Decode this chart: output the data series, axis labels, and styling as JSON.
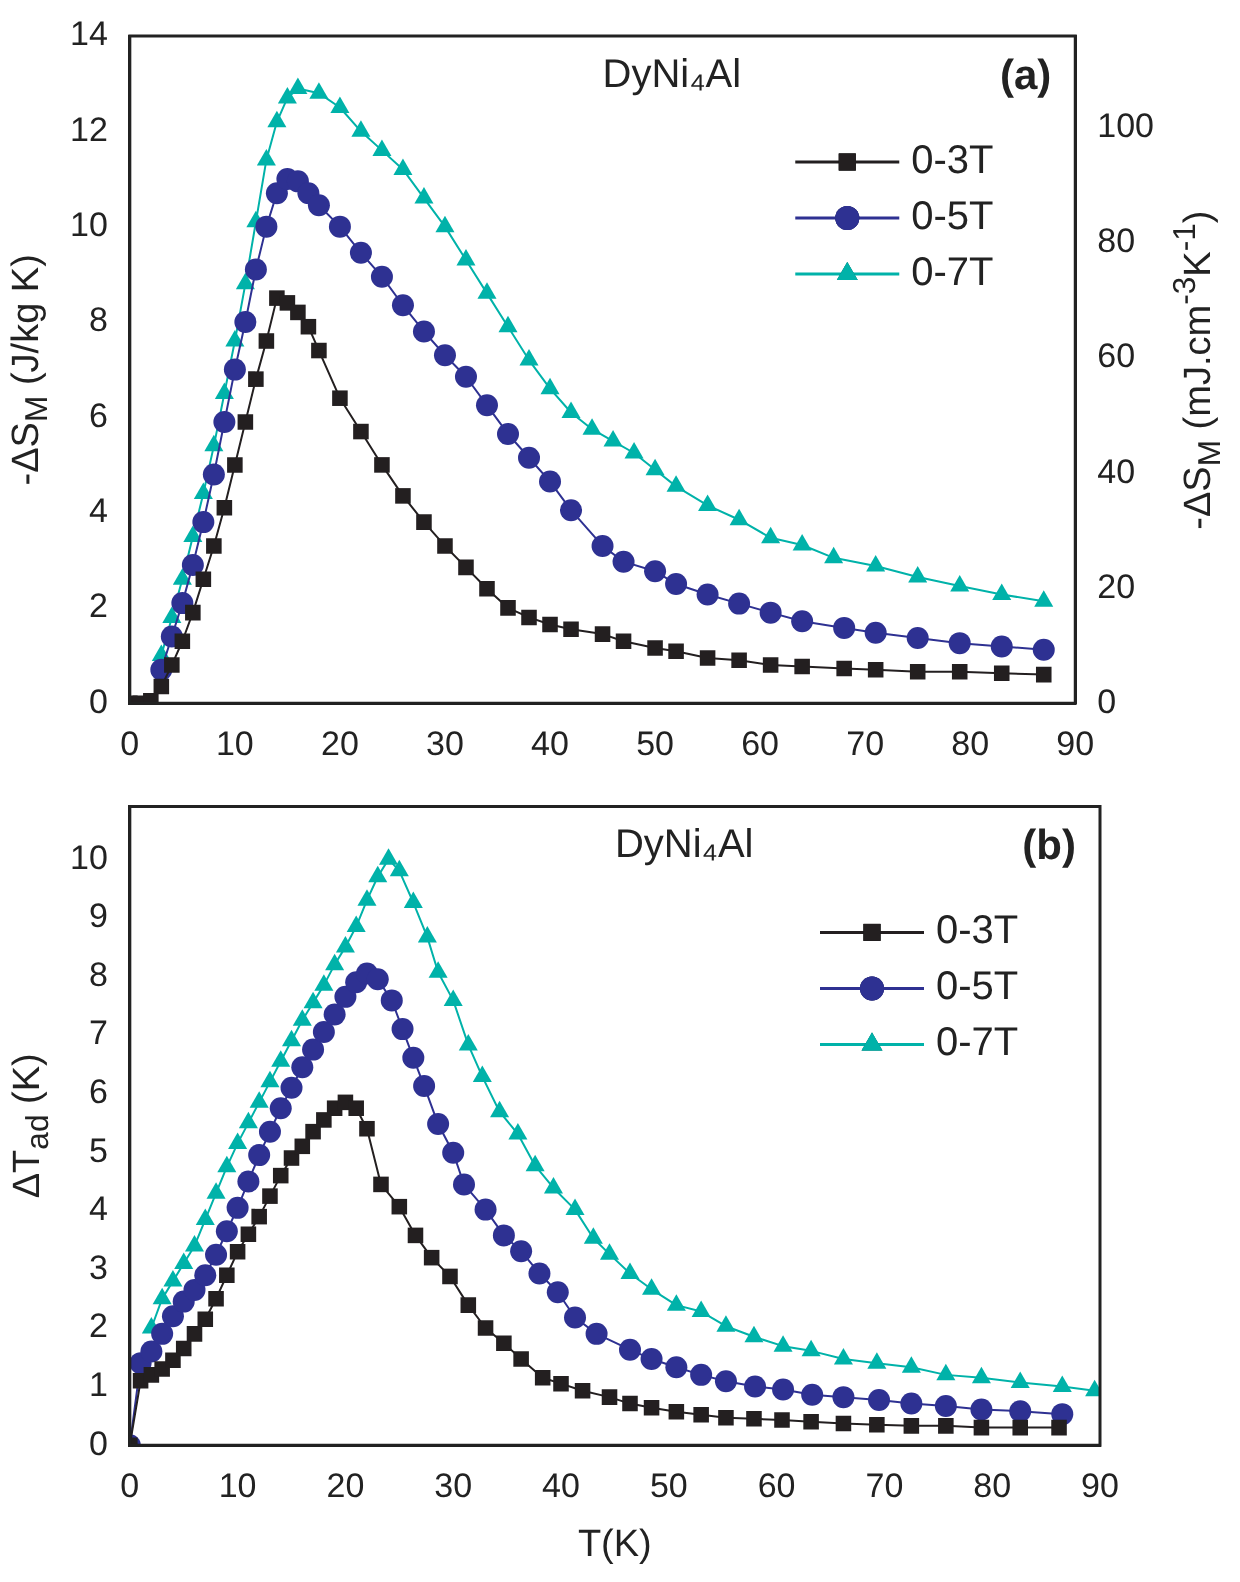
{
  "chart_data": [
    {
      "type": "line",
      "annotations": [
        "DyNi₄Al",
        "(a)"
      ],
      "ylabel": "-ΔS$_{M}$ (J/kg K)",
      "y2label": "-ΔS$_{M}$  (mJ.cm$^{-3}$K$^{-1}$)",
      "xlim": [
        0,
        90
      ],
      "xticks": [
        0,
        10,
        20,
        30,
        40,
        50,
        60,
        70,
        80,
        90
      ],
      "ylim": [
        0,
        14
      ],
      "yticks": [
        0,
        2,
        4,
        6,
        8,
        10,
        12,
        14
      ],
      "y2lim": [
        0,
        116
      ],
      "y2ticks": [
        0,
        20,
        40,
        60,
        80,
        100
      ],
      "grid": false,
      "legend": "top right",
      "line_style": "solid",
      "series": [
        {
          "name": "0-3T",
          "color": "#231f20",
          "marker": "square",
          "x": [
            0,
            1,
            2,
            3,
            4,
            5,
            6,
            7,
            8,
            9,
            10,
            11,
            12,
            13,
            14,
            15,
            16,
            17,
            18,
            20,
            22,
            24,
            26,
            28,
            30,
            32,
            34,
            36,
            38,
            40,
            42,
            45,
            47,
            50,
            52,
            55,
            58,
            61,
            64,
            68,
            71,
            75,
            79,
            83,
            87
          ],
          "values": [
            0,
            0,
            0.05,
            0.35,
            0.8,
            1.3,
            1.9,
            2.6,
            3.3,
            4.1,
            5.0,
            5.9,
            6.8,
            7.6,
            8.5,
            8.4,
            8.2,
            7.9,
            7.4,
            6.4,
            5.7,
            5.0,
            4.35,
            3.8,
            3.3,
            2.85,
            2.4,
            2.0,
            1.8,
            1.65,
            1.55,
            1.45,
            1.3,
            1.16,
            1.09,
            0.95,
            0.9,
            0.8,
            0.77,
            0.73,
            0.7,
            0.66,
            0.66,
            0.63,
            0.6
          ]
        },
        {
          "name": "0-5T",
          "color": "#2e3192",
          "marker": "circle",
          "x": [
            3,
            4,
            5,
            6,
            7,
            8,
            9,
            10,
            11,
            12,
            13,
            14,
            15,
            16,
            17,
            18,
            20,
            22,
            24,
            26,
            28,
            30,
            32,
            34,
            36,
            38,
            40,
            42,
            45,
            47,
            50,
            52,
            55,
            58,
            61,
            64,
            68,
            71,
            75,
            79,
            83,
            87
          ],
          "values": [
            0.7,
            1.4,
            2.1,
            2.9,
            3.8,
            4.8,
            5.9,
            7.0,
            8.0,
            9.1,
            10.0,
            10.7,
            11.0,
            10.95,
            10.7,
            10.45,
            10.0,
            9.45,
            8.95,
            8.35,
            7.8,
            7.3,
            6.85,
            6.25,
            5.65,
            5.15,
            4.65,
            4.05,
            3.3,
            2.97,
            2.77,
            2.5,
            2.28,
            2.09,
            1.9,
            1.72,
            1.58,
            1.48,
            1.37,
            1.26,
            1.19,
            1.12
          ]
        },
        {
          "name": "0-7T",
          "color": "#00b2a9",
          "marker": "triangle",
          "x": [
            3,
            4,
            5,
            6,
            7,
            8,
            9,
            10,
            11,
            12,
            13,
            14,
            15,
            16,
            18,
            20,
            22,
            24,
            26,
            28,
            30,
            32,
            34,
            36,
            38,
            40,
            42,
            44,
            46,
            48,
            50,
            52,
            55,
            58,
            61,
            64,
            67,
            71,
            75,
            79,
            83,
            87
          ],
          "values": [
            1.0,
            1.8,
            2.6,
            3.5,
            4.4,
            5.4,
            6.5,
            7.6,
            8.8,
            10.1,
            11.4,
            12.2,
            12.7,
            12.9,
            12.8,
            12.5,
            12.0,
            11.6,
            11.2,
            10.6,
            10.0,
            9.3,
            8.6,
            7.9,
            7.2,
            6.6,
            6.1,
            5.75,
            5.5,
            5.25,
            4.9,
            4.55,
            4.15,
            3.85,
            3.47,
            3.32,
            3.05,
            2.88,
            2.65,
            2.46,
            2.28,
            2.14
          ]
        }
      ]
    },
    {
      "type": "line",
      "annotations": [
        "DyNi₄Al",
        "(b)"
      ],
      "xlabel": "T(K)",
      "ylabel": "ΔT$_{ad}$ (K)",
      "xlim": [
        0,
        90
      ],
      "xticks": [
        0,
        10,
        20,
        30,
        40,
        50,
        60,
        70,
        80,
        90
      ],
      "ylim": [
        0,
        10.9
      ],
      "yticks": [
        0,
        1,
        2,
        3,
        4,
        5,
        6,
        7,
        8,
        9,
        10
      ],
      "grid": false,
      "legend": "top right",
      "line_style": "solid",
      "series": [
        {
          "name": "0-3T",
          "color": "#231f20",
          "marker": "square",
          "x": [
            0,
            1,
            2,
            3,
            4,
            5,
            6,
            7,
            8,
            9,
            10,
            11,
            12,
            13,
            14,
            15,
            16,
            17,
            18,
            19,
            20,
            21,
            22,
            23.3,
            25,
            26.5,
            28,
            29.7,
            31.4,
            33,
            34.7,
            36.3,
            38.3,
            40,
            42,
            44.5,
            46.4,
            48.4,
            50.7,
            53,
            55.3,
            57.9,
            60.5,
            63.2,
            66.2,
            69.3,
            72.5,
            75.7,
            79,
            82.6,
            86.2
          ],
          "values": [
            0,
            1.1,
            1.2,
            1.3,
            1.45,
            1.65,
            1.9,
            2.15,
            2.5,
            2.9,
            3.3,
            3.6,
            3.9,
            4.25,
            4.6,
            4.9,
            5.1,
            5.35,
            5.55,
            5.75,
            5.85,
            5.75,
            5.4,
            4.45,
            4.07,
            3.58,
            3.2,
            2.88,
            2.39,
            2.0,
            1.74,
            1.47,
            1.15,
            1.05,
            0.93,
            0.82,
            0.71,
            0.64,
            0.57,
            0.52,
            0.47,
            0.45,
            0.43,
            0.4,
            0.37,
            0.35,
            0.33,
            0.33,
            0.3,
            0.3,
            0.3
          ]
        },
        {
          "name": "0-5T",
          "color": "#2e3192",
          "marker": "circle",
          "x": [
            0,
            1,
            2,
            3,
            4,
            5,
            6,
            7,
            8,
            9,
            10,
            11,
            12,
            13,
            14,
            15,
            16,
            17,
            18,
            19,
            20,
            21,
            22,
            23,
            24.3,
            25.3,
            26.3,
            27.3,
            28.6,
            30,
            31,
            33,
            34.7,
            36.3,
            38,
            39.7,
            41.3,
            43.3,
            46.4,
            48.4,
            50.7,
            53,
            55.3,
            58,
            60.6,
            63.3,
            66.2,
            69.5,
            72.5,
            75.7,
            79,
            82.6,
            86.5
          ],
          "values": [
            0,
            1.4,
            1.6,
            1.9,
            2.2,
            2.45,
            2.65,
            2.9,
            3.25,
            3.65,
            4.05,
            4.5,
            4.95,
            5.35,
            5.75,
            6.1,
            6.45,
            6.75,
            7.05,
            7.35,
            7.65,
            7.9,
            8.05,
            7.95,
            7.59,
            7.1,
            6.61,
            6.13,
            5.48,
            4.99,
            4.45,
            4.02,
            3.58,
            3.31,
            2.93,
            2.61,
            2.18,
            1.9,
            1.63,
            1.47,
            1.33,
            1.2,
            1.09,
            1.0,
            0.95,
            0.86,
            0.82,
            0.77,
            0.71,
            0.67,
            0.61,
            0.58,
            0.53
          ]
        },
        {
          "name": "0-7T",
          "color": "#00b2a9",
          "marker": "triangle",
          "x": [
            2,
            3,
            4,
            5,
            6,
            7,
            8,
            9,
            10,
            11,
            12,
            13,
            14,
            15,
            16,
            17,
            18,
            19,
            20,
            21,
            22,
            23,
            24,
            25,
            26.3,
            27.6,
            28.6,
            30,
            31.4,
            32.7,
            34.3,
            36,
            37.6,
            39.3,
            41.3,
            43,
            44.5,
            46.4,
            48.4,
            50.7,
            53,
            55.3,
            57.9,
            60.6,
            63.2,
            66.2,
            69.3,
            72.5,
            75.7,
            79,
            82.6,
            86.5,
            89.5
          ],
          "values": [
            2.0,
            2.5,
            2.8,
            3.1,
            3.4,
            3.85,
            4.3,
            4.75,
            5.15,
            5.5,
            5.85,
            6.2,
            6.55,
            6.9,
            7.25,
            7.55,
            7.85,
            8.2,
            8.5,
            8.85,
            9.3,
            9.7,
            10.0,
            9.8,
            9.26,
            8.67,
            8.07,
            7.59,
            6.83,
            6.29,
            5.69,
            5.31,
            4.77,
            4.39,
            4.02,
            3.53,
            3.26,
            2.93,
            2.66,
            2.39,
            2.28,
            2.03,
            1.85,
            1.69,
            1.61,
            1.47,
            1.4,
            1.33,
            1.2,
            1.15,
            1.07,
            1.0,
            0.93
          ]
        }
      ]
    }
  ]
}
